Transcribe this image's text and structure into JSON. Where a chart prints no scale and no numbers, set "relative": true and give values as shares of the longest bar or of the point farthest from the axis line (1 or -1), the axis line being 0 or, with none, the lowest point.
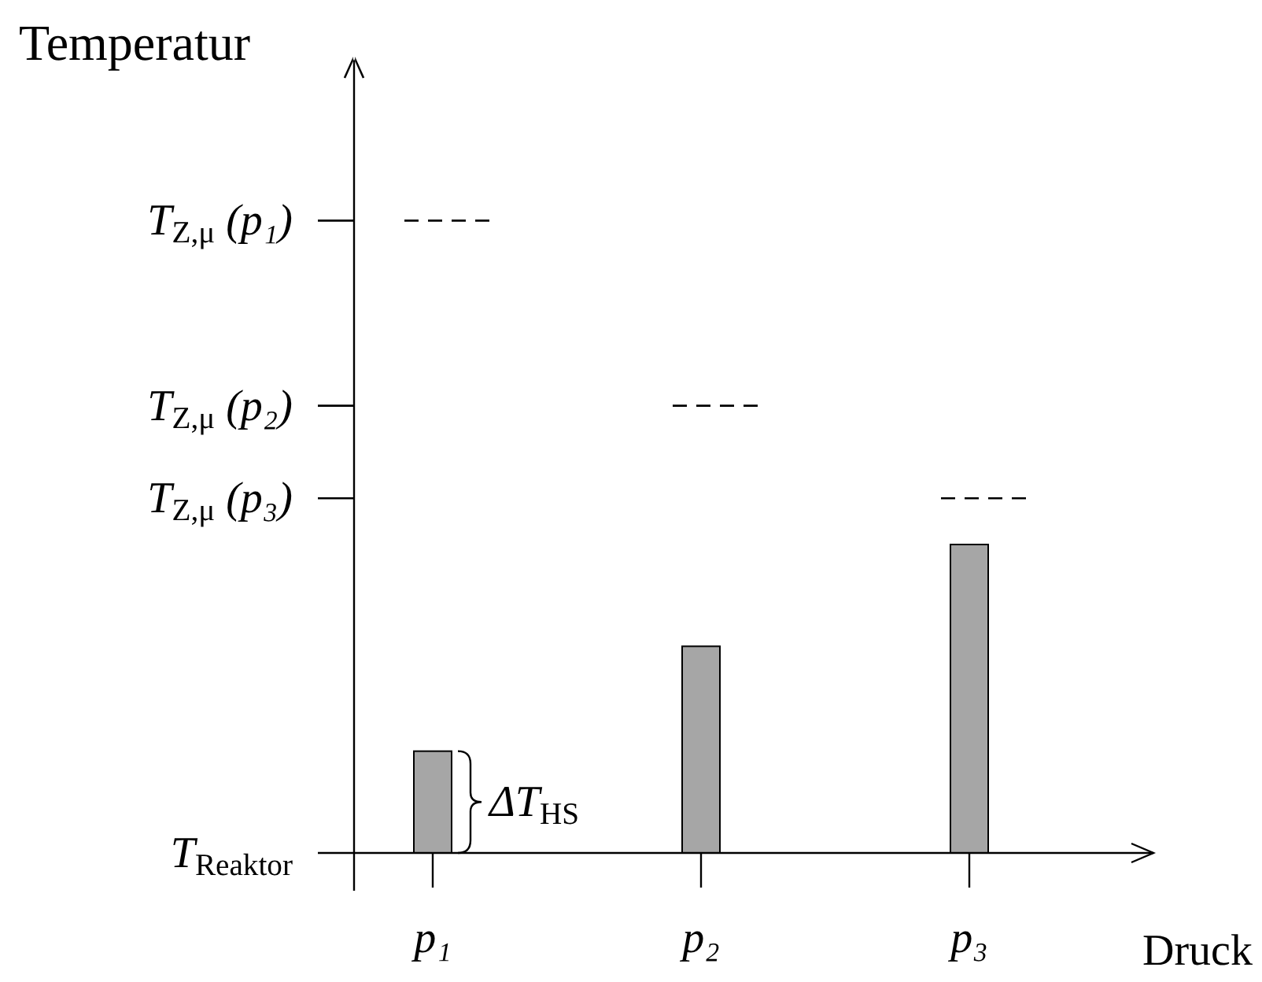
{
  "chart_data": {
    "type": "bar",
    "relative": true,
    "xlabel": "Druck",
    "categories": [
      "p₁",
      "p₂",
      "p₃"
    ],
    "series": [
      {
        "color": "#a6a6a6",
        "values": [
          0.33,
          0.67,
          1
        ]
      }
    ],
    "ref_lines": [
      {
        "axis": "y",
        "value": 2.05,
        "label": "T$_{Z,μ}$ (p₁)",
        "line_style": "dashed",
        "color": "#000000"
      },
      {
        "axis": "y",
        "value": 1.45,
        "label": "T$_{Z,μ}$ (p₂)",
        "line_style": "dashed",
        "color": "#000000"
      },
      {
        "axis": "y",
        "value": 1.15,
        "label": "T$_{Z,μ}$ (p₃)",
        "line_style": "dashed",
        "color": "#000000"
      }
    ],
    "annotations": [
      "Temperatur",
      "T$_{Reaktor}$",
      {
        "text": "ΔT$_{HS}$",
        "x": "p₁",
        "y": 0.33
      }
    ]
  }
}
